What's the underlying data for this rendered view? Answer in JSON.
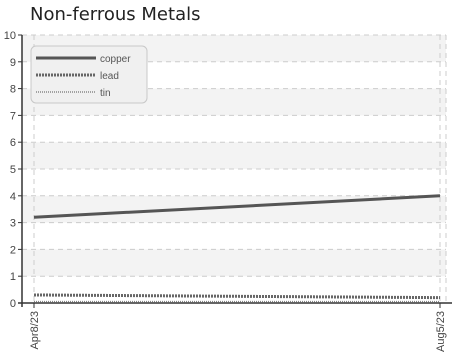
{
  "chart_data": {
    "type": "line",
    "title": "Non-ferrous Metals",
    "xlabel": "",
    "ylabel": "",
    "x": [
      "Apr8/23",
      "Aug5/23"
    ],
    "xticks": [
      "Apr8/23",
      "Aug5/23"
    ],
    "ylim": [
      0,
      10
    ],
    "yticks": [
      "0",
      "1",
      "2",
      "3",
      "4",
      "5",
      "6",
      "7",
      "8",
      "9",
      "10"
    ],
    "grid": true,
    "legend": "top-left",
    "series": [
      {
        "name": "copper",
        "values": [
          3.2,
          4.0
        ],
        "color": "#555555",
        "style": "solid"
      },
      {
        "name": "lead",
        "values": [
          0.3,
          0.2
        ],
        "color": "#666666",
        "style": "dotted-thick"
      },
      {
        "name": "tin",
        "values": [
          0.05,
          0.05
        ],
        "color": "#888888",
        "style": "dotted-thin"
      }
    ]
  }
}
